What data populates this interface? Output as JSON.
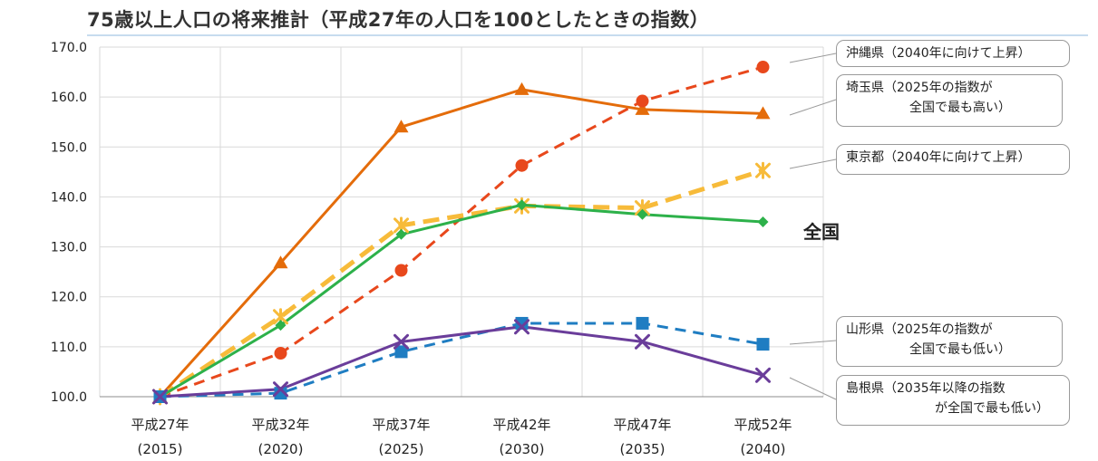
{
  "title": "75歳以上人口の将来推計（平成27年の人口を100としたときの指数）",
  "chart_data": {
    "type": "line",
    "title": "75歳以上人口の将来推計（平成27年の人口を100としたときの指数）",
    "categories": [
      {
        "era": "平成27年",
        "year": "(2015)"
      },
      {
        "era": "平成32年",
        "year": "(2020)"
      },
      {
        "era": "平成37年",
        "year": "(2025)"
      },
      {
        "era": "平成42年",
        "year": "(2030)"
      },
      {
        "era": "平成47年",
        "year": "(2035)"
      },
      {
        "era": "平成52年",
        "year": "(2040)"
      }
    ],
    "ylim": [
      100,
      170
    ],
    "yticks": [
      "100.0",
      "110.0",
      "120.0",
      "130.0",
      "140.0",
      "150.0",
      "160.0",
      "170.0"
    ],
    "grid": true,
    "series": [
      {
        "name": "埼玉県",
        "values": [
          100,
          126.8,
          154.0,
          161.5,
          157.5,
          156.7
        ],
        "color": "#e46c0a",
        "dash": "solid",
        "marker": "triangle"
      },
      {
        "name": "沖縄県",
        "values": [
          100,
          108.7,
          125.3,
          146.3,
          159.2,
          166.0
        ],
        "color": "#e8481c",
        "dash": "dashed",
        "marker": "circle"
      },
      {
        "name": "東京都",
        "values": [
          100,
          116.0,
          134.3,
          138.2,
          137.8,
          145.3
        ],
        "color": "#f7bb3a",
        "dash": "dashed",
        "marker": "star"
      },
      {
        "name": "全国",
        "values": [
          100,
          114.3,
          132.5,
          138.4,
          136.5,
          135.0
        ],
        "color": "#2db14a",
        "dash": "solid",
        "marker": "diamond"
      },
      {
        "name": "山形県",
        "values": [
          100,
          100.7,
          109.0,
          114.7,
          114.7,
          110.5
        ],
        "color": "#1f7dc2",
        "dash": "dashed",
        "marker": "square"
      },
      {
        "name": "島根県",
        "values": [
          100,
          101.5,
          111.0,
          114.0,
          111.0,
          104.3
        ],
        "color": "#6a3d9a",
        "dash": "solid",
        "marker": "x"
      }
    ]
  },
  "callouts": [
    {
      "key": "okinawa",
      "line1": "沖縄県（2040年に向けて上昇）",
      "line2": ""
    },
    {
      "key": "saitama",
      "line1": "埼玉県（2025年の指数が",
      "line2": "全国で最も高い）"
    },
    {
      "key": "tokyo",
      "line1": "東京都（2040年に向けて上昇）",
      "line2": ""
    },
    {
      "key": "yamagata",
      "line1": "山形県（2025年の指数が",
      "line2": "全国で最も低い）"
    },
    {
      "key": "shimane",
      "line1": "島根県（2035年以降の指数",
      "line2": "が全国で最も低い）"
    }
  ],
  "zenkoku_label": "全国"
}
